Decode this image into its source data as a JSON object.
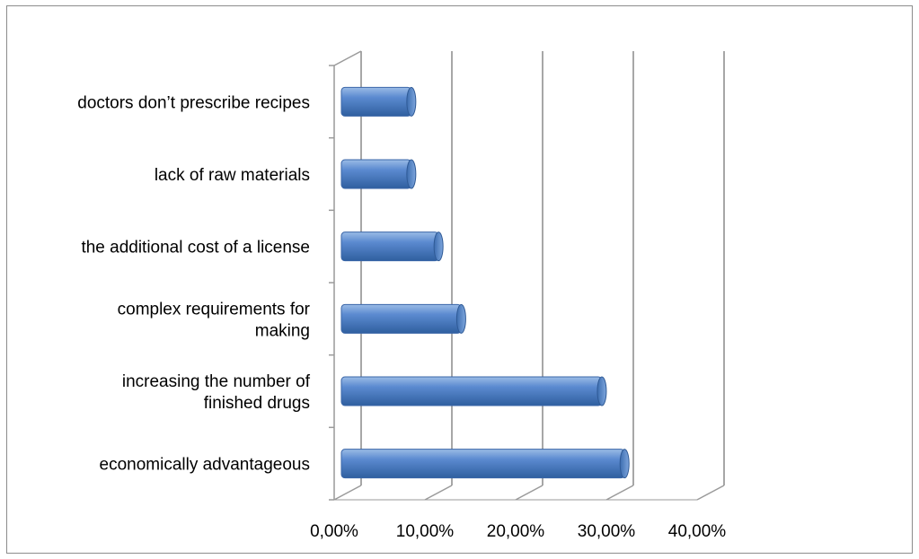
{
  "chart_data": {
    "type": "bar",
    "orientation": "horizontal",
    "categories": [
      "economically advantageous",
      "increasing the number of finished drugs",
      "complex requirements for making",
      "the additional cost of a license",
      "lack of raw materials",
      "doctors don’t prescribe recipes"
    ],
    "category_lines": [
      [
        "economically advantageous"
      ],
      [
        "increasing the number of",
        "finished drugs"
      ],
      [
        "complex requirements for",
        "making"
      ],
      [
        "the additional cost of a license"
      ],
      [
        "lack of raw materials"
      ],
      [
        "doctors don’t prescribe recipes"
      ]
    ],
    "values": [
      0.32,
      0.295,
      0.14,
      0.115,
      0.085,
      0.085
    ],
    "xlim": [
      0,
      0.4
    ],
    "xticks": [
      0,
      0.1,
      0.2,
      0.3,
      0.4
    ],
    "xtick_labels": [
      "0,00%",
      "10,00%",
      "20,00%",
      "30,00%",
      "40,00%"
    ],
    "title": "",
    "xlabel": "",
    "ylabel": "",
    "grid": true,
    "legend": false,
    "bar_color": "#4f81bd"
  }
}
